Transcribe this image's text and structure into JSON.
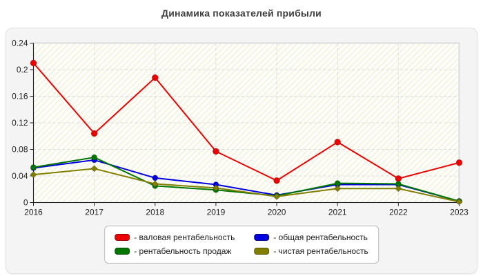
{
  "title": "Динамика показателей прибыли",
  "chart_data": {
    "type": "line",
    "x": [
      "2016",
      "2017",
      "2018",
      "2019",
      "2020",
      "2021",
      "2022",
      "2023"
    ],
    "series": [
      {
        "name": "валовая рентабельность",
        "color": "#ee0000",
        "marker": "circle",
        "values": [
          0.21,
          0.104,
          0.188,
          0.077,
          0.033,
          0.091,
          0.036,
          0.06
        ]
      },
      {
        "name": "общая рентабельность",
        "color": "#0000e0",
        "marker": "circle",
        "values": [
          0.052,
          0.064,
          0.037,
          0.027,
          0.011,
          0.027,
          0.027,
          0.002
        ]
      },
      {
        "name": "рентабельность продаж",
        "color": "#007700",
        "marker": "circle",
        "values": [
          0.053,
          0.068,
          0.025,
          0.019,
          0.01,
          0.029,
          0.028,
          0.002
        ]
      },
      {
        "name": "чистая рентабельность",
        "color": "#827f00",
        "marker": "diamond",
        "values": [
          0.042,
          0.051,
          0.028,
          0.022,
          0.009,
          0.021,
          0.021,
          0.001
        ]
      }
    ],
    "ylim": [
      0,
      0.24
    ],
    "ytick_labels": [
      "0",
      "0.04",
      "0.08",
      "0.12",
      "0.16",
      "0.2",
      "0.24"
    ],
    "ytick_values": [
      0,
      0.04,
      0.08,
      0.12,
      0.16,
      0.2,
      0.24
    ],
    "grid": true,
    "legend_position": "bottom"
  },
  "legend": {
    "items": [
      {
        "label": "- валовая рентабельность",
        "color": "#ee0000"
      },
      {
        "label": "- общая рентабельность",
        "color": "#0000e0"
      },
      {
        "label": "- рентабельность продаж",
        "color": "#007700"
      },
      {
        "label": "- чистая рентабельность",
        "color": "#827f00"
      }
    ]
  },
  "colors": {
    "panel_bg": "#f4f4f4",
    "plot_stripe": "#f6f6e6",
    "grid": "#dcdcdc",
    "axis": "#222222",
    "title": "#3d3d3d"
  }
}
